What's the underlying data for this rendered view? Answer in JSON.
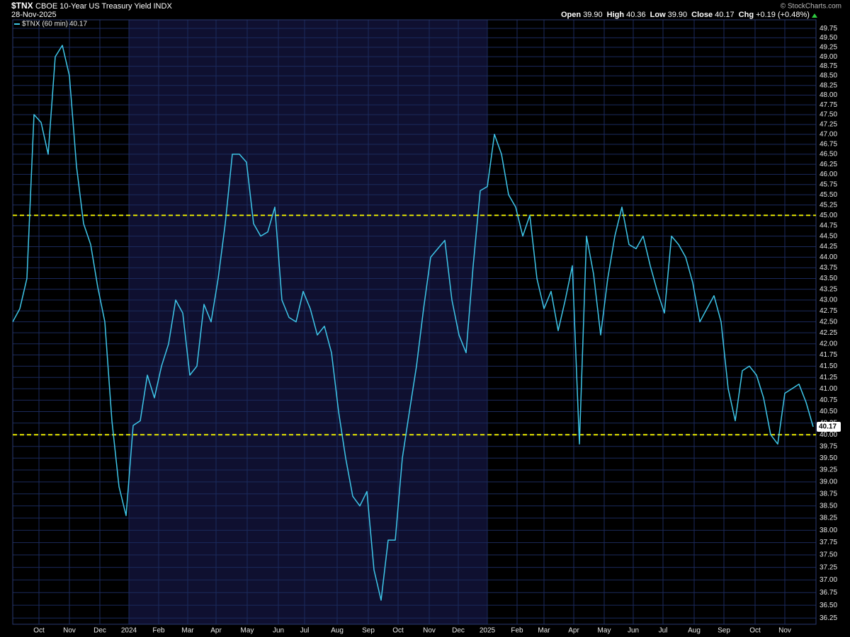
{
  "header": {
    "symbol": "$TNX",
    "name": "CBOE 10-Year US Treasury Yield INDX",
    "date": "28-Nov-2025",
    "watermark": "© StockCharts.com",
    "quote": [
      {
        "label": "Open",
        "value": "39.90"
      },
      {
        "label": "High",
        "value": "40.36"
      },
      {
        "label": "Low",
        "value": "39.90"
      },
      {
        "label": "Close",
        "value": "40.17"
      },
      {
        "label": "Chg",
        "value": "+0.19 (+0.48%)"
      }
    ]
  },
  "chart_data": {
    "type": "line",
    "series": [
      {
        "name": "$TNX (60 min)",
        "color": "#3ec6e8",
        "values": [
          42.5,
          42.8,
          43.5,
          47.5,
          47.3,
          46.5,
          49.0,
          49.3,
          48.5,
          46.2,
          44.8,
          44.3,
          43.3,
          42.5,
          40.3,
          38.9,
          38.3,
          40.2,
          40.3,
          41.3,
          40.8,
          41.5,
          42.0,
          43.0,
          42.7,
          41.3,
          41.5,
          42.9,
          42.5,
          43.5,
          44.8,
          46.5,
          46.5,
          46.3,
          44.8,
          44.5,
          44.6,
          45.2,
          43.0,
          42.6,
          42.5,
          43.2,
          42.8,
          42.2,
          42.4,
          41.8,
          40.5,
          39.5,
          38.7,
          38.5,
          38.8,
          37.2,
          36.6,
          37.8,
          37.8,
          39.5,
          40.5,
          41.5,
          42.8,
          44.0,
          44.2,
          44.4,
          43.0,
          42.2,
          41.8,
          43.8,
          45.6,
          45.7,
          47.0,
          46.5,
          45.5,
          45.2,
          44.5,
          45.0,
          43.5,
          42.8,
          43.2,
          42.3,
          43.0,
          43.8,
          39.8,
          44.5,
          43.6,
          42.2,
          43.5,
          44.5,
          45.2,
          44.3,
          44.2,
          44.5,
          43.8,
          43.2,
          42.7,
          44.5,
          44.3,
          44.0,
          43.4,
          42.5,
          42.8,
          43.1,
          42.5,
          41.0,
          40.3,
          41.4,
          41.5,
          41.3,
          40.8,
          40.0,
          39.8,
          40.9,
          41.0,
          41.1,
          40.7,
          40.17
        ]
      }
    ],
    "xlim": [
      0,
      113.4
    ],
    "xticks": [
      {
        "value": 3.7,
        "label": "Oct"
      },
      {
        "value": 8,
        "label": "Nov"
      },
      {
        "value": 12.3,
        "label": "Dec"
      },
      {
        "value": 16.4,
        "label": "2024"
      },
      {
        "value": 20.6,
        "label": "Feb"
      },
      {
        "value": 24.7,
        "label": "Mar"
      },
      {
        "value": 28.7,
        "label": "Apr"
      },
      {
        "value": 33.1,
        "label": "May"
      },
      {
        "value": 37.5,
        "label": "Jun"
      },
      {
        "value": 41.2,
        "label": "Jul"
      },
      {
        "value": 45.8,
        "label": "Aug"
      },
      {
        "value": 50.2,
        "label": "Sep"
      },
      {
        "value": 54.4,
        "label": "Oct"
      },
      {
        "value": 58.8,
        "label": "Nov"
      },
      {
        "value": 62.9,
        "label": "Dec"
      },
      {
        "value": 67,
        "label": "2025"
      },
      {
        "value": 71.2,
        "label": "Feb"
      },
      {
        "value": 75,
        "label": "Mar"
      },
      {
        "value": 79.2,
        "label": "Apr"
      },
      {
        "value": 83.5,
        "label": "May"
      },
      {
        "value": 87.6,
        "label": "Jun"
      },
      {
        "value": 91.8,
        "label": "Jul"
      },
      {
        "value": 96.2,
        "label": "Aug"
      },
      {
        "value": 100.4,
        "label": "Sep"
      },
      {
        "value": 104.8,
        "label": "Oct"
      },
      {
        "value": 109,
        "label": "Nov"
      }
    ],
    "ylim": [
      36.13,
      49.98
    ],
    "yticks": [
      36.25,
      {
        "value": 36.5,
        "label": "36.50"
      },
      36.75,
      {
        "value": 37,
        "label": "37.00"
      },
      37.25,
      {
        "value": 37.5,
        "label": "37.50"
      },
      37.75,
      {
        "value": 38,
        "label": "38.00"
      },
      38.25,
      {
        "value": 38.5,
        "label": "38.50"
      },
      38.75,
      {
        "value": 39,
        "label": "39.00"
      },
      39.25,
      {
        "value": 39.5,
        "label": "39.50"
      },
      39.75,
      {
        "value": 40,
        "label": "40.00"
      },
      40.25,
      {
        "value": 40.5,
        "label": "40.50"
      },
      40.75,
      {
        "value": 41,
        "label": "41.00"
      },
      41.25,
      {
        "value": 41.5,
        "label": "41.50"
      },
      41.75,
      {
        "value": 42,
        "label": "42.00"
      },
      42.25,
      {
        "value": 42.5,
        "label": "42.50"
      },
      42.75,
      {
        "value": 43,
        "label": "43.00"
      },
      43.25,
      {
        "value": 43.5,
        "label": "43.50"
      },
      43.75,
      {
        "value": 44,
        "label": "44.00"
      },
      44.25,
      {
        "value": 44.5,
        "label": "44.50"
      },
      44.75,
      {
        "value": 45,
        "label": "45.00"
      },
      45.25,
      {
        "value": 45.5,
        "label": "45.50"
      },
      45.75,
      {
        "value": 46,
        "label": "46.00"
      },
      46.25,
      {
        "value": 46.5,
        "label": "46.50"
      },
      46.75,
      {
        "value": 47,
        "label": "47.00"
      },
      47.25,
      {
        "value": 47.5,
        "label": "47.50"
      },
      47.75,
      {
        "value": 48,
        "label": "48.00"
      },
      48.25,
      {
        "value": 48.5,
        "label": "48.50"
      },
      48.75,
      {
        "value": 49,
        "label": "49.00"
      },
      49.25,
      {
        "value": 49.5,
        "label": "49.50"
      },
      49.75
    ],
    "log_y": true,
    "grid": true,
    "hlines": [
      {
        "value": 45,
        "color": "#e6e600"
      },
      {
        "value": 40,
        "color": "#e6e600"
      }
    ]
  }
}
